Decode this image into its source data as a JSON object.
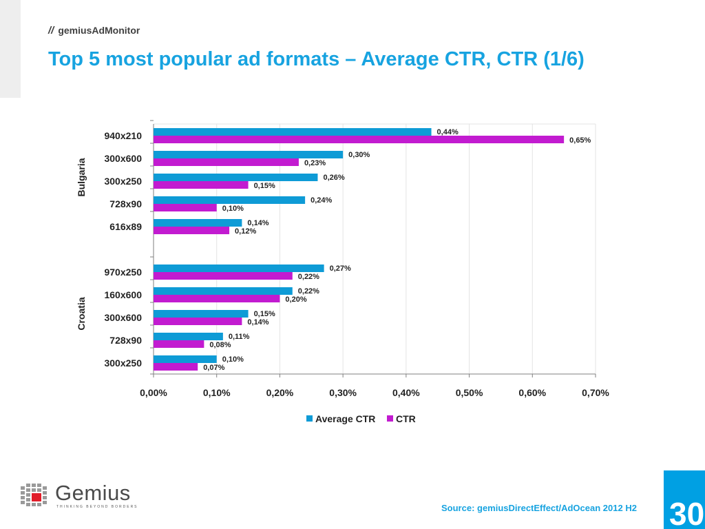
{
  "header": {
    "slash": "//",
    "brand": "gemiusAdMonitor"
  },
  "title": "Top 5 most popular ad formats – Average CTR, CTR (1/6)",
  "chart_data": {
    "type": "bar",
    "orientation": "horizontal",
    "groups": [
      {
        "name": "Bulgaria",
        "categories": [
          "940x210",
          "300x600",
          "300x250",
          "728x90",
          "616x89"
        ]
      },
      {
        "name": "Croatia",
        "categories": [
          "970x250",
          "160x600",
          "300x600",
          "728x90",
          "300x250"
        ]
      }
    ],
    "series": [
      {
        "name": "Average CTR",
        "color": "#0e9bd6",
        "values": [
          0.44,
          0.3,
          0.26,
          0.24,
          0.14,
          0.27,
          0.22,
          0.15,
          0.11,
          0.1
        ],
        "labels": [
          "0,44%",
          "0,30%",
          "0,26%",
          "0,24%",
          "0,14%",
          "0,27%",
          "0,22%",
          "0,15%",
          "0,11%",
          "0,10%"
        ]
      },
      {
        "name": "CTR",
        "color": "#c21bd0",
        "values": [
          0.65,
          0.23,
          0.15,
          0.1,
          0.12,
          0.22,
          0.2,
          0.14,
          0.08,
          0.07
        ],
        "labels": [
          "0,65%",
          "0,23%",
          "0,15%",
          "0,10%",
          "0,12%",
          "0,22%",
          "0,20%",
          "0,14%",
          "0,08%",
          "0,07%"
        ]
      }
    ],
    "xlim": [
      0,
      0.7
    ],
    "xticks": [
      "0,00%",
      "0,10%",
      "0,20%",
      "0,30%",
      "0,40%",
      "0,50%",
      "0,60%",
      "0,70%"
    ],
    "grid": true,
    "legend": "bottom"
  },
  "footer": {
    "logo_word": "Gemius",
    "logo_tagline": "THINKING BEYOND BORDERS",
    "source": "Source: gemiusDirectEffect/AdOcean 2012 H2",
    "page_number": "30"
  }
}
